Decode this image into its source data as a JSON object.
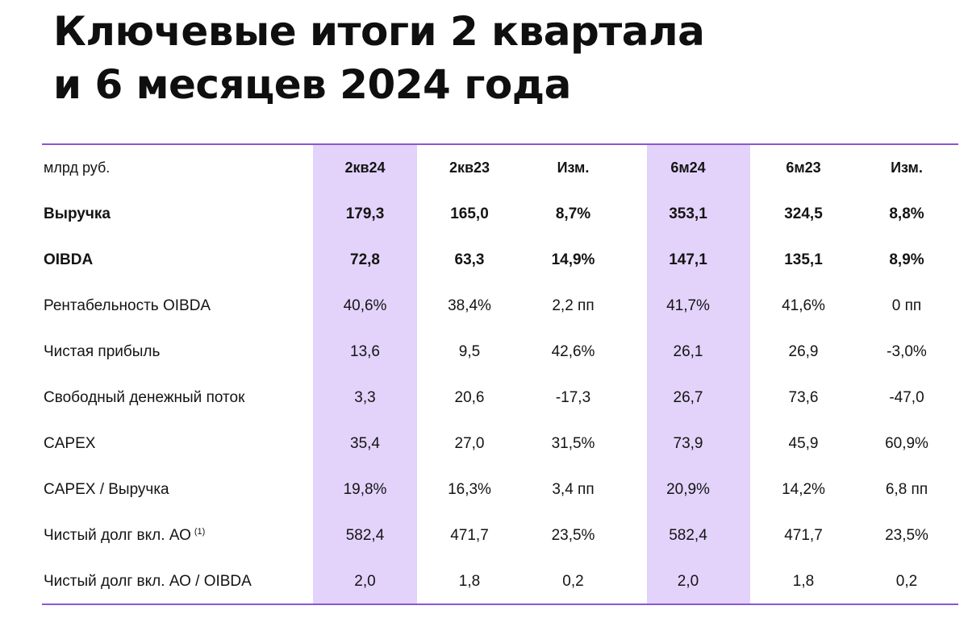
{
  "title": {
    "line1": "Ключевые итоги 2 квартала",
    "line2": "и 6 месяцев 2024 года"
  },
  "colors": {
    "highlight": "#e3d3fb",
    "rule": "#8c55d6",
    "text": "#141414"
  },
  "table": {
    "unit_label": "млрд руб.",
    "columns": [
      "2кв24",
      "2кв23",
      "Изм.",
      "6м24",
      "6м23",
      "Изм."
    ],
    "highlighted_columns": [
      "2кв24",
      "6м24"
    ],
    "rows": [
      {
        "label": "Выручка",
        "footnote": "",
        "bold": true,
        "values": [
          "179,3",
          "165,0",
          "8,7%",
          "353,1",
          "324,5",
          "8,8%"
        ]
      },
      {
        "label": "OIBDA",
        "footnote": "",
        "bold": true,
        "values": [
          "72,8",
          "63,3",
          "14,9%",
          "147,1",
          "135,1",
          "8,9%"
        ]
      },
      {
        "label": "Рентабельность OIBDA",
        "footnote": "",
        "bold": false,
        "values": [
          "40,6%",
          "38,4%",
          "2,2 пп",
          "41,7%",
          "41,6%",
          "0 пп"
        ]
      },
      {
        "label": "Чистая прибыль",
        "footnote": "",
        "bold": false,
        "values": [
          "13,6",
          "9,5",
          "42,6%",
          "26,1",
          "26,9",
          "-3,0%"
        ]
      },
      {
        "label": "Свободный денежный поток",
        "footnote": "",
        "bold": false,
        "values": [
          "3,3",
          "20,6",
          "-17,3",
          "26,7",
          "73,6",
          "-47,0"
        ]
      },
      {
        "label": "CAPEX",
        "footnote": "",
        "bold": false,
        "values": [
          "35,4",
          "27,0",
          "31,5%",
          "73,9",
          "45,9",
          "60,9%"
        ]
      },
      {
        "label": "CAPEX / Выручка",
        "footnote": "",
        "bold": false,
        "values": [
          "19,8%",
          "16,3%",
          "3,4 пп",
          "20,9%",
          "14,2%",
          "6,8 пп"
        ]
      },
      {
        "label": "Чистый долг вкл. АО",
        "footnote": "(1)",
        "bold": false,
        "values": [
          "582,4",
          "471,7",
          "23,5%",
          "582,4",
          "471,7",
          "23,5%"
        ]
      },
      {
        "label": "Чистый долг вкл. АО / OIBDA",
        "footnote": "",
        "bold": false,
        "values": [
          "2,0",
          "1,8",
          "0,2",
          "2,0",
          "1,8",
          "0,2"
        ]
      }
    ]
  }
}
